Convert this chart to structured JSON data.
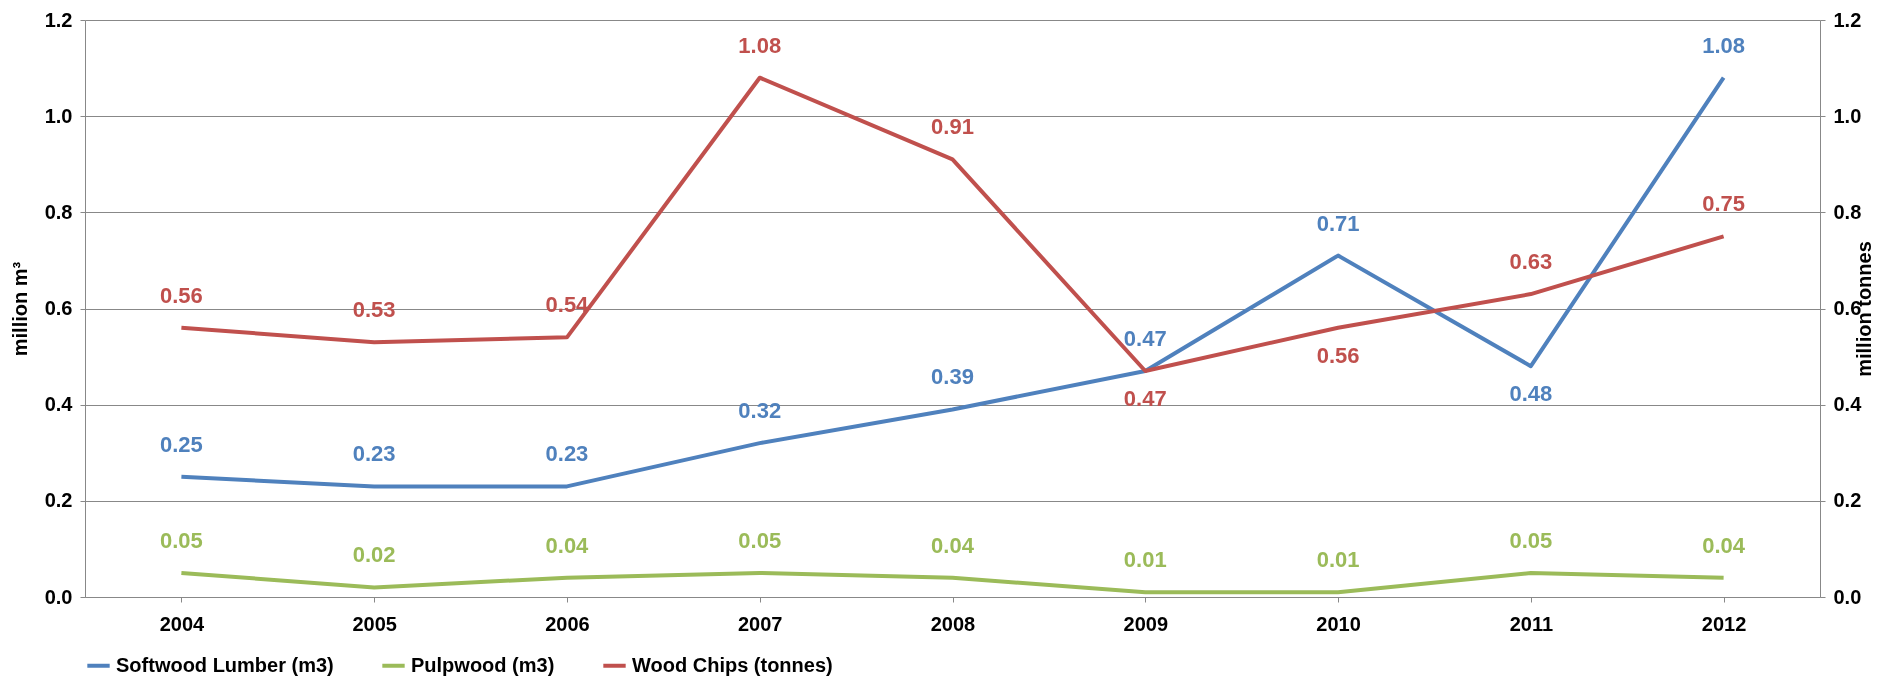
{
  "chart_data": {
    "type": "line",
    "ylabel": "million m³",
    "y2label": "million tonnes",
    "categories": [
      "2004",
      "2005",
      "2006",
      "2007",
      "2008",
      "2009",
      "2010",
      "2011",
      "2012"
    ],
    "series": [
      {
        "name": "Softwood Lumber (m3)",
        "color": "#4f81bd",
        "values": [
          0.25,
          0.23,
          0.23,
          0.32,
          0.39,
          0.47,
          0.71,
          0.48,
          1.08
        ]
      },
      {
        "name": "Pulpwood (m3)",
        "color": "#9bbb59",
        "values": [
          0.05,
          0.02,
          0.04,
          0.05,
          0.04,
          0.01,
          0.01,
          0.05,
          0.04
        ]
      },
      {
        "name": "Wood Chips (tonnes)",
        "color": "#c0504d",
        "axis": "y2",
        "values": [
          0.56,
          0.53,
          0.54,
          1.08,
          0.91,
          0.47,
          0.56,
          0.63,
          0.75
        ]
      }
    ],
    "ylim": [
      0,
      1.2
    ],
    "yticks": [
      {
        "value": 0,
        "label": "0.0"
      },
      {
        "value": 0.2,
        "label": "0.2"
      },
      {
        "value": 0.4,
        "label": "0.4"
      },
      {
        "value": 0.6,
        "label": "0.6"
      },
      {
        "value": 0.8,
        "label": "0.8"
      },
      {
        "value": 1,
        "label": "1.0"
      },
      {
        "value": 1.2,
        "label": "1.2"
      }
    ],
    "y2lim": [
      0,
      1.2
    ],
    "y2ticks": [
      {
        "value": 0,
        "label": "0.0"
      },
      {
        "value": 0.2,
        "label": "0.2"
      },
      {
        "value": 0.4,
        "label": "0.4"
      },
      {
        "value": 0.6,
        "label": "0.6"
      },
      {
        "value": 0.8,
        "label": "0.8"
      },
      {
        "value": 1,
        "label": "1.0"
      },
      {
        "value": 1.2,
        "label": "1.2"
      }
    ],
    "data_labels": true,
    "grid": "y",
    "legend": "bottom",
    "marker": "none",
    "line_style": "solid"
  }
}
